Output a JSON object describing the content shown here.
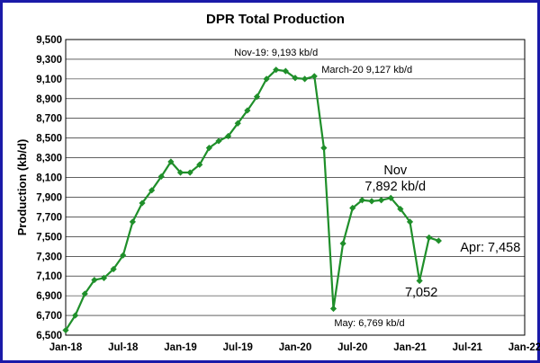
{
  "chart_data": {
    "type": "line",
    "title": "DPR Total  Production",
    "xlabel": "",
    "ylabel": "Production (kb/d)",
    "ylim": [
      6500,
      9500
    ],
    "yticks": [
      "6,500",
      "6,700",
      "6,900",
      "7,100",
      "7,300",
      "7,500",
      "7,700",
      "7,900",
      "8,100",
      "8,300",
      "8,500",
      "8,700",
      "8,900",
      "9,100",
      "9,300",
      "9,500"
    ],
    "xticks": [
      "Jan-18",
      "Jul-18",
      "Jan-19",
      "Jul-19",
      "Jan-20",
      "Jul-20",
      "Jan-21",
      "Jul-21",
      "Jan-22"
    ],
    "grid": true,
    "legend": "none",
    "series_color": "#1f8f2a",
    "series": [
      {
        "x": [
          "2018-01",
          "2018-02",
          "2018-03",
          "2018-04",
          "2018-05",
          "2018-06",
          "2018-07",
          "2018-08",
          "2018-09",
          "2018-10",
          "2018-11",
          "2018-12",
          "2019-01",
          "2019-02",
          "2019-03",
          "2019-04",
          "2019-05",
          "2019-06",
          "2019-07",
          "2019-08",
          "2019-09",
          "2019-10",
          "2019-11",
          "2019-12",
          "2020-01",
          "2020-02",
          "2020-03",
          "2020-04",
          "2020-05",
          "2020-06",
          "2020-07",
          "2020-08",
          "2020-09",
          "2020-10",
          "2020-11",
          "2020-12",
          "2021-01",
          "2021-02",
          "2021-03",
          "2021-04"
        ],
        "values": [
          6550,
          6700,
          6920,
          7060,
          7080,
          7170,
          7310,
          7650,
          7840,
          7970,
          8110,
          8260,
          8150,
          8150,
          8230,
          8400,
          8470,
          8520,
          8650,
          8780,
          8920,
          9100,
          9193,
          9180,
          9110,
          9100,
          9127,
          8400,
          6769,
          7430,
          7790,
          7870,
          7860,
          7870,
          7892,
          7780,
          7650,
          7052,
          7490,
          7458
        ]
      }
    ],
    "annotations": [
      {
        "text": "Nov-19: 9,193 kb/d",
        "x": "2019-11"
      },
      {
        "text": "March-20 9,127 kb/d",
        "x": "2020-03"
      },
      {
        "text": "May: 6,769 kb/d",
        "x": "2020-05"
      },
      {
        "text": "Nov",
        "x": "2020-11"
      },
      {
        "text": "7,892 kb/d",
        "x": "2020-11"
      },
      {
        "text": "7,052",
        "x": "2021-02"
      },
      {
        "text": "Apr: 7,458",
        "x": "2021-04"
      }
    ]
  }
}
